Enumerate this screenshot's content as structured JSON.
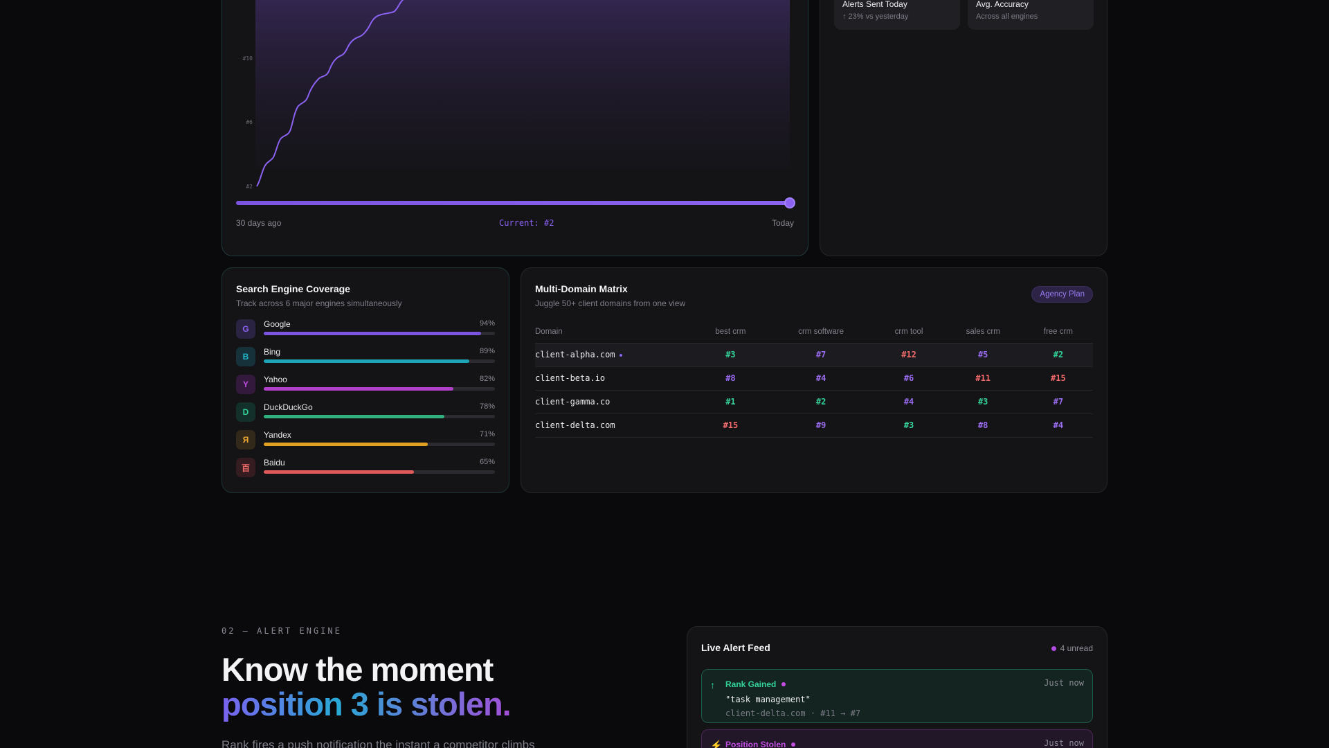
{
  "colors": {
    "accent": "#8b62f2",
    "good": "#34d399",
    "mid": "#9a6cf0",
    "bad": "#f26b6b",
    "magenta": "#c04fe0"
  },
  "rank_chart": {
    "y_ticks": [
      "#10",
      "#6",
      "#2"
    ],
    "start_label": "30 days ago",
    "current_label": "Current: #2",
    "end_label": "Today",
    "slider_position": 1.0
  },
  "stats": [
    {
      "title": "Alerts Sent Today",
      "sub": "↑ 23% vs yesterday"
    },
    {
      "title": "Avg. Accuracy",
      "sub": "Across all engines"
    }
  ],
  "coverage": {
    "title": "Search Engine Coverage",
    "subtitle": "Track across 6 major engines simultaneously",
    "engines": [
      {
        "letter": "G",
        "name": "Google",
        "pct_label": "94%",
        "value": 94,
        "color": "#7b55e0",
        "badge_bg": "#2a2342",
        "badge_fg": "#8b62f2"
      },
      {
        "letter": "B",
        "name": "Bing",
        "pct_label": "89%",
        "value": 89,
        "color": "#1ea5b8",
        "badge_bg": "#16313a",
        "badge_fg": "#22b8cc"
      },
      {
        "letter": "Y",
        "name": "Yahoo",
        "pct_label": "82%",
        "value": 82,
        "color": "#b040c8",
        "badge_bg": "#33193c",
        "badge_fg": "#c04fe0"
      },
      {
        "letter": "D",
        "name": "DuckDuckGo",
        "pct_label": "78%",
        "value": 78,
        "color": "#2fb07e",
        "badge_bg": "#14302a",
        "badge_fg": "#34d399"
      },
      {
        "letter": "Я",
        "name": "Yandex",
        "pct_label": "71%",
        "value": 71,
        "color": "#e0a020",
        "badge_bg": "#33291a",
        "badge_fg": "#f0a830"
      },
      {
        "letter": "百",
        "name": "Baidu",
        "pct_label": "65%",
        "value": 65,
        "color": "#e05a5a",
        "badge_bg": "#351c20",
        "badge_fg": "#f26b6b"
      }
    ]
  },
  "matrix": {
    "title": "Multi-Domain Matrix",
    "subtitle": "Juggle 50+ client domains from one view",
    "plan_badge": "Agency Plan",
    "columns": [
      "Domain",
      "best crm",
      "crm software",
      "crm tool",
      "sales crm",
      "free crm"
    ],
    "rows": [
      {
        "domain": "client-alpha.com",
        "live": true,
        "cells": [
          {
            "text": "#3",
            "tone": "good"
          },
          {
            "text": "#7",
            "tone": "mid"
          },
          {
            "text": "#12",
            "tone": "bad"
          },
          {
            "text": "#5",
            "tone": "mid"
          },
          {
            "text": "#2",
            "tone": "good"
          }
        ]
      },
      {
        "domain": "client-beta.io",
        "live": false,
        "cells": [
          {
            "text": "#8",
            "tone": "mid"
          },
          {
            "text": "#4",
            "tone": "mid"
          },
          {
            "text": "#6",
            "tone": "mid"
          },
          {
            "text": "#11",
            "tone": "bad"
          },
          {
            "text": "#15",
            "tone": "bad"
          }
        ]
      },
      {
        "domain": "client-gamma.co",
        "live": false,
        "cells": [
          {
            "text": "#1",
            "tone": "good"
          },
          {
            "text": "#2",
            "tone": "good"
          },
          {
            "text": "#4",
            "tone": "mid"
          },
          {
            "text": "#3",
            "tone": "good"
          },
          {
            "text": "#7",
            "tone": "mid"
          }
        ]
      },
      {
        "domain": "client-delta.com",
        "live": false,
        "cells": [
          {
            "text": "#15",
            "tone": "bad"
          },
          {
            "text": "#9",
            "tone": "mid"
          },
          {
            "text": "#3",
            "tone": "good"
          },
          {
            "text": "#8",
            "tone": "mid"
          },
          {
            "text": "#4",
            "tone": "mid"
          }
        ]
      }
    ]
  },
  "section": {
    "kicker": "02 — ALERT ENGINE",
    "headline_l1": "Know the moment",
    "headline_l2": "position 3 is stolen.",
    "body": "Rank fires a push notification the instant a competitor climbs"
  },
  "feed": {
    "title": "Live Alert Feed",
    "unread": "4 unread",
    "alerts": [
      {
        "type": "gained",
        "icon": "↑",
        "title": "Rank Gained",
        "time": "Just now",
        "query": "\"task management\"",
        "meta": "client-delta.com · #11 → #7"
      },
      {
        "type": "stolen",
        "icon": "⚡",
        "title": "Position Stolen",
        "time": "Just now"
      }
    ]
  }
}
